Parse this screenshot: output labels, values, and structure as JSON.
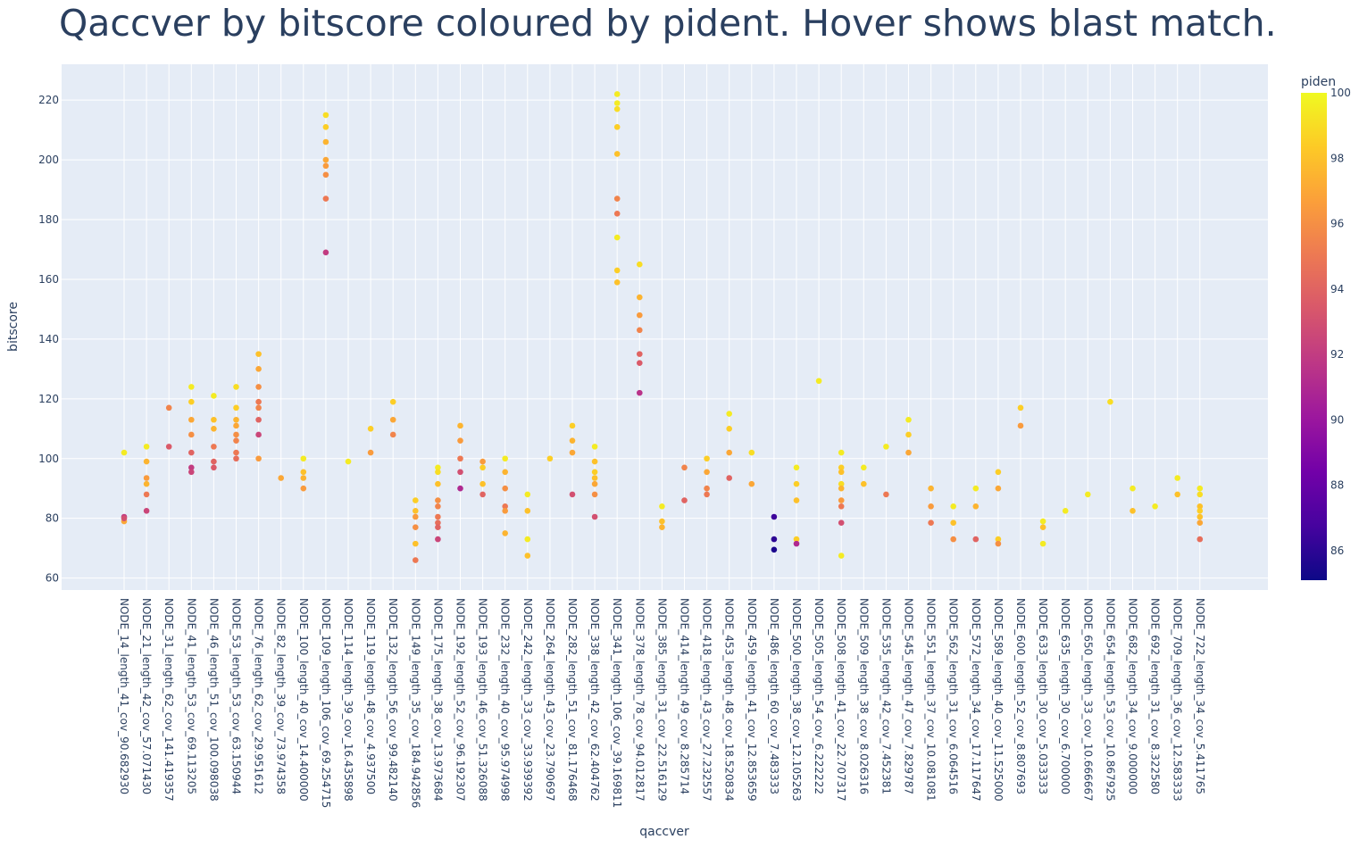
{
  "chart_data": {
    "type": "scatter",
    "title": "Qaccver by bitscore coloured by pident. Hover shows blast match.",
    "xlabel": "qaccver",
    "ylabel": "bitscore",
    "ylim": [
      56,
      232
    ],
    "yticks": [
      60,
      80,
      100,
      120,
      140,
      160,
      180,
      200,
      220
    ],
    "colorbar": {
      "title": "piden",
      "min": 85.1,
      "max": 100,
      "ticks": [
        86,
        88,
        90,
        92,
        94,
        96,
        98,
        100
      ],
      "placement": "right"
    },
    "colorscale": [
      "#0d0887",
      "#46039f",
      "#7201a8",
      "#9c179e",
      "#bd3786",
      "#d8576b",
      "#ed7953",
      "#fb9f3a",
      "#fdca26",
      "#f0f921"
    ],
    "categories": [
      "NODE_14_length_41_cov_90.682930",
      "NODE_21_length_42_cov_57.071430",
      "NODE_31_length_62_cov_141.419357",
      "NODE_41_length_53_cov_69.113205",
      "NODE_46_length_51_cov_100.098038",
      "NODE_53_length_53_cov_63.150944",
      "NODE_76_length_62_cov_29.951612",
      "NODE_82_length_39_cov_73.974358",
      "NODE_100_length_40_cov_14.400000",
      "NODE_109_length_106_cov_69.254715",
      "NODE_114_length_39_cov_16.435898",
      "NODE_119_length_48_cov_4.937500",
      "NODE_132_length_56_cov_99.482140",
      "NODE_149_length_35_cov_184.942856",
      "NODE_175_length_38_cov_13.973684",
      "NODE_192_length_52_cov_96.192307",
      "NODE_193_length_46_cov_51.326088",
      "NODE_232_length_40_cov_95.974998",
      "NODE_242_length_33_cov_33.939392",
      "NODE_264_length_43_cov_23.790697",
      "NODE_282_length_51_cov_81.176468",
      "NODE_338_length_42_cov_62.404762",
      "NODE_341_length_106_cov_39.169811",
      "NODE_378_length_78_cov_94.012817",
      "NODE_385_length_31_cov_22.516129",
      "NODE_414_length_49_cov_8.285714",
      "NODE_418_length_43_cov_27.232557",
      "NODE_453_length_48_cov_18.520834",
      "NODE_459_length_41_cov_12.853659",
      "NODE_486_length_60_cov_7.483333",
      "NODE_500_length_38_cov_12.105263",
      "NODE_505_length_54_cov_6.222222",
      "NODE_508_length_41_cov_22.707317",
      "NODE_509_length_38_cov_8.026316",
      "NODE_535_length_42_cov_7.452381",
      "NODE_545_length_47_cov_7.829787",
      "NODE_551_length_37_cov_10.081081",
      "NODE_562_length_31_cov_6.064516",
      "NODE_572_length_34_cov_17.117647",
      "NODE_589_length_40_cov_11.525000",
      "NODE_600_length_52_cov_8.807693",
      "NODE_633_length_30_cov_5.033333",
      "NODE_635_length_30_cov_6.700000",
      "NODE_650_length_33_cov_10.666667",
      "NODE_654_length_53_cov_10.867925",
      "NODE_682_length_34_cov_9.000000",
      "NODE_692_length_31_cov_8.322580",
      "NODE_709_length_36_cov_12.583333",
      "NODE_722_length_34_cov_5.411765"
    ],
    "points": [
      [
        0,
        102,
        99.5
      ],
      [
        0,
        80.5,
        92
      ],
      [
        0,
        79,
        97
      ],
      [
        0,
        80,
        93
      ],
      [
        1,
        104,
        99.5
      ],
      [
        1,
        99,
        97.5
      ],
      [
        1,
        93.5,
        96.5
      ],
      [
        1,
        91.5,
        97.5
      ],
      [
        1,
        88,
        95
      ],
      [
        1,
        82.5,
        92.5
      ],
      [
        2,
        117,
        95.5
      ],
      [
        2,
        104,
        93.5
      ],
      [
        3,
        124,
        99.5
      ],
      [
        3,
        119,
        98.5
      ],
      [
        3,
        113,
        97
      ],
      [
        3,
        108,
        96
      ],
      [
        3,
        102,
        94
      ],
      [
        3,
        97,
        92
      ],
      [
        3,
        95.5,
        92.5
      ],
      [
        4,
        121,
        99.5
      ],
      [
        4,
        113,
        98
      ],
      [
        4,
        110,
        97.5
      ],
      [
        4,
        104,
        95
      ],
      [
        4,
        99,
        94
      ],
      [
        4,
        97,
        93.5
      ],
      [
        5,
        124,
        99
      ],
      [
        5,
        117,
        98.5
      ],
      [
        5,
        113,
        97.5
      ],
      [
        5,
        111,
        97
      ],
      [
        5,
        108,
        96
      ],
      [
        5,
        106,
        95.5
      ],
      [
        5,
        102,
        95
      ],
      [
        5,
        100,
        94.5
      ],
      [
        6,
        135,
        98
      ],
      [
        6,
        130,
        97
      ],
      [
        6,
        124,
        96
      ],
      [
        6,
        119,
        95
      ],
      [
        6,
        117,
        95.5
      ],
      [
        6,
        113,
        94
      ],
      [
        6,
        108,
        92.5
      ],
      [
        6,
        100,
        96.5
      ],
      [
        7,
        93.5,
        97
      ],
      [
        8,
        100,
        99.5
      ],
      [
        8,
        95.5,
        98
      ],
      [
        8,
        93.5,
        97.5
      ],
      [
        8,
        90,
        96.5
      ],
      [
        9,
        215,
        99
      ],
      [
        9,
        211,
        98.5
      ],
      [
        9,
        206,
        97.5
      ],
      [
        9,
        200,
        97
      ],
      [
        9,
        198,
        96.5
      ],
      [
        9,
        195,
        96
      ],
      [
        9,
        187,
        95
      ],
      [
        9,
        169,
        92
      ],
      [
        10,
        99,
        99.5
      ],
      [
        11,
        110,
        98.5
      ],
      [
        11,
        102,
        96.5
      ],
      [
        12,
        119,
        98.5
      ],
      [
        12,
        113,
        97
      ],
      [
        12,
        108,
        95.5
      ],
      [
        13,
        86,
        98.5
      ],
      [
        13,
        82.5,
        98
      ],
      [
        13,
        80.5,
        96.5
      ],
      [
        13,
        77,
        96
      ],
      [
        13,
        71.5,
        98
      ],
      [
        13,
        66,
        95
      ],
      [
        14,
        97,
        99.5
      ],
      [
        14,
        95.5,
        99
      ],
      [
        14,
        91.5,
        98
      ],
      [
        14,
        86,
        96
      ],
      [
        14,
        84,
        95.5
      ],
      [
        14,
        80.5,
        95
      ],
      [
        14,
        78.5,
        94.5
      ],
      [
        14,
        77,
        94
      ],
      [
        14,
        73,
        92.5
      ],
      [
        15,
        111,
        97.5
      ],
      [
        15,
        106,
        96.5
      ],
      [
        15,
        100,
        95
      ],
      [
        15,
        95.5,
        93
      ],
      [
        15,
        90,
        91
      ],
      [
        16,
        99,
        96.5
      ],
      [
        16,
        97,
        98.5
      ],
      [
        16,
        91.5,
        98
      ],
      [
        16,
        88,
        94
      ],
      [
        17,
        100,
        99.5
      ],
      [
        17,
        95.5,
        97.5
      ],
      [
        17,
        90,
        96
      ],
      [
        17,
        84,
        95
      ],
      [
        17,
        82.5,
        96.5
      ],
      [
        17,
        75,
        97.5
      ],
      [
        18,
        88,
        99.5
      ],
      [
        18,
        82.5,
        98
      ],
      [
        18,
        73,
        99.5
      ],
      [
        18,
        67.5,
        98
      ],
      [
        19,
        100,
        98.5
      ],
      [
        20,
        111,
        98.5
      ],
      [
        20,
        106,
        97.5
      ],
      [
        20,
        102,
        97
      ],
      [
        20,
        88,
        93
      ],
      [
        21,
        104,
        99.5
      ],
      [
        21,
        99,
        98
      ],
      [
        21,
        95.5,
        98.5
      ],
      [
        21,
        93.5,
        98
      ],
      [
        21,
        91.5,
        97
      ],
      [
        21,
        88,
        96
      ],
      [
        21,
        80.5,
        93
      ],
      [
        22,
        222,
        99.5
      ],
      [
        22,
        219,
        99.5
      ],
      [
        22,
        217,
        99
      ],
      [
        22,
        211,
        98.5
      ],
      [
        22,
        202,
        98
      ],
      [
        22,
        187,
        95.5
      ],
      [
        22,
        182,
        95
      ],
      [
        22,
        174,
        99.5
      ],
      [
        22,
        163,
        98.5
      ],
      [
        22,
        159,
        98
      ],
      [
        23,
        165,
        99
      ],
      [
        23,
        154,
        97.5
      ],
      [
        23,
        148,
        96.5
      ],
      [
        23,
        143,
        95.5
      ],
      [
        23,
        135,
        94
      ],
      [
        23,
        132,
        93.5
      ],
      [
        23,
        122,
        91.5
      ],
      [
        24,
        84,
        99.5
      ],
      [
        24,
        79,
        98
      ],
      [
        24,
        77,
        97.5
      ],
      [
        25,
        97,
        95.5
      ],
      [
        25,
        86,
        94
      ],
      [
        26,
        100,
        98.5
      ],
      [
        26,
        95.5,
        97
      ],
      [
        26,
        90,
        95.5
      ],
      [
        26,
        88,
        95
      ],
      [
        27,
        115,
        99.5
      ],
      [
        27,
        110,
        98.5
      ],
      [
        27,
        102,
        97
      ],
      [
        27,
        93.5,
        94
      ],
      [
        28,
        102,
        99
      ],
      [
        28,
        91.5,
        97
      ],
      [
        29,
        80.5,
        86.5
      ],
      [
        29,
        73,
        86
      ],
      [
        29,
        69.5,
        85.5
      ],
      [
        30,
        97,
        99.5
      ],
      [
        30,
        91.5,
        98.5
      ],
      [
        30,
        86,
        98
      ],
      [
        30,
        73,
        98.5
      ],
      [
        30,
        71.5,
        91
      ],
      [
        31,
        126,
        99.5
      ],
      [
        32,
        102,
        99.5
      ],
      [
        32,
        97,
        98.5
      ],
      [
        32,
        95.5,
        98
      ],
      [
        32,
        91.5,
        99
      ],
      [
        32,
        90,
        97.5
      ],
      [
        32,
        86,
        96.5
      ],
      [
        32,
        84,
        95
      ],
      [
        32,
        78.5,
        93
      ],
      [
        32,
        67.5,
        99.5
      ],
      [
        33,
        97,
        99.5
      ],
      [
        33,
        91.5,
        98
      ],
      [
        34,
        104,
        99.5
      ],
      [
        34,
        88,
        95
      ],
      [
        35,
        113,
        99.5
      ],
      [
        35,
        108,
        98.5
      ],
      [
        35,
        102,
        97
      ],
      [
        36,
        90,
        97.5
      ],
      [
        36,
        84,
        96.5
      ],
      [
        36,
        78.5,
        95
      ],
      [
        37,
        84,
        99.5
      ],
      [
        37,
        78.5,
        98
      ],
      [
        37,
        73,
        96
      ],
      [
        38,
        90,
        99.5
      ],
      [
        38,
        84,
        97.5
      ],
      [
        38,
        73,
        94
      ],
      [
        39,
        95.5,
        98.5
      ],
      [
        39,
        90,
        97
      ],
      [
        39,
        73,
        98.5
      ],
      [
        39,
        71.5,
        96
      ],
      [
        40,
        117,
        98.5
      ],
      [
        40,
        111,
        96.5
      ],
      [
        41,
        79,
        99.5
      ],
      [
        41,
        77,
        98
      ],
      [
        41,
        71.5,
        99.5
      ],
      [
        42,
        82.5,
        99.5
      ],
      [
        43,
        88,
        99.5
      ],
      [
        44,
        119,
        99
      ],
      [
        45,
        90,
        99.5
      ],
      [
        45,
        82.5,
        98
      ],
      [
        46,
        84,
        99.5
      ],
      [
        47,
        93.5,
        99.5
      ],
      [
        47,
        88,
        98
      ],
      [
        48,
        90,
        99.5
      ],
      [
        48,
        88,
        99
      ],
      [
        48,
        84,
        98
      ],
      [
        48,
        82.5,
        98.5
      ],
      [
        48,
        80.5,
        98
      ],
      [
        48,
        78.5,
        97
      ],
      [
        48,
        73,
        94.5
      ]
    ]
  }
}
